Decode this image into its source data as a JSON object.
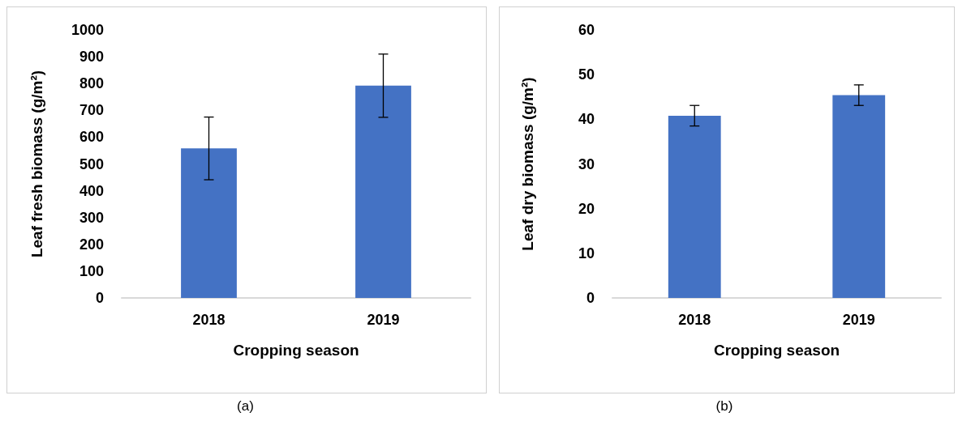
{
  "chart_data": [
    {
      "type": "bar",
      "categories": [
        "2018",
        "2019"
      ],
      "values": [
        558,
        792
      ],
      "errors": [
        117,
        118
      ],
      "color": "#4472c4",
      "xlabel": "Cropping season",
      "ylabel": "Leaf fresh biomass (g/m²)",
      "ylim": [
        0,
        1000
      ],
      "yticks": [
        0,
        100,
        200,
        300,
        400,
        500,
        600,
        700,
        800,
        900,
        1000
      ],
      "grid": false,
      "annotations": [
        "(a)"
      ]
    },
    {
      "type": "bar",
      "categories": [
        "2018",
        "2019"
      ],
      "values": [
        40.8,
        45.4
      ],
      "errors": [
        2.3,
        2.3
      ],
      "color": "#4472c4",
      "xlabel": "Cropping season",
      "ylabel": "Leaf dry biomass (g/m²)",
      "ylim": [
        0,
        60
      ],
      "yticks": [
        0,
        10,
        20,
        30,
        40,
        50,
        60
      ],
      "grid": false,
      "annotations": [
        "(b)"
      ]
    }
  ]
}
